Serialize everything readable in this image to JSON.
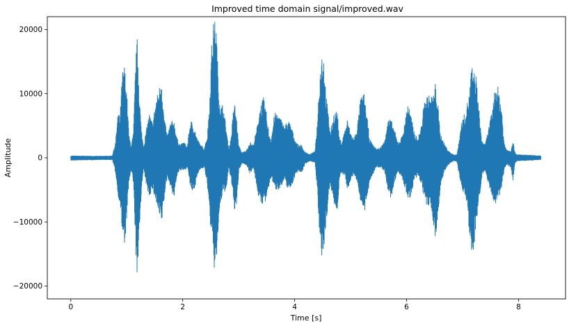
{
  "chart_data": {
    "type": "line",
    "title": "Improved time domain signal/improved.wav",
    "xlabel": "Time [s]",
    "ylabel": "Amplitude",
    "xlim": [
      -0.42,
      8.84
    ],
    "ylim": [
      -22000,
      22000
    ],
    "xticks": [
      0,
      2,
      4,
      6,
      8
    ],
    "yticks": [
      -20000,
      -10000,
      0,
      10000,
      20000
    ],
    "xtick_labels": [
      "0",
      "2",
      "4",
      "6",
      "8"
    ],
    "ytick_labels": [
      "−20000",
      "−10000",
      "0",
      "10000",
      "20000"
    ],
    "grid": false,
    "color": "#1f77b4",
    "series": [
      {
        "envelope": [
          [
            0.0,
            300,
            -400
          ],
          [
            0.5,
            250,
            -300
          ],
          [
            0.74,
            300,
            -300
          ],
          [
            0.8,
            2500,
            -2500
          ],
          [
            0.84,
            7000,
            -6000
          ],
          [
            0.88,
            6500,
            -7000
          ],
          [
            0.92,
            13500,
            -12500
          ],
          [
            0.96,
            14500,
            -14000
          ],
          [
            1.0,
            10500,
            -9000
          ],
          [
            1.04,
            3500,
            -3500
          ],
          [
            1.08,
            2000,
            -2000
          ],
          [
            1.12,
            4000,
            -4500
          ],
          [
            1.16,
            15500,
            -15000
          ],
          [
            1.19,
            19000,
            -20000
          ],
          [
            1.22,
            11000,
            -12000
          ],
          [
            1.26,
            4500,
            -5000
          ],
          [
            1.3,
            1800,
            -1800
          ],
          [
            1.36,
            5000,
            -5000
          ],
          [
            1.4,
            7000,
            -6000
          ],
          [
            1.46,
            5500,
            -5000
          ],
          [
            1.52,
            9000,
            -7000
          ],
          [
            1.58,
            11000,
            -9500
          ],
          [
            1.62,
            13000,
            -10500
          ],
          [
            1.66,
            7000,
            -7000
          ],
          [
            1.72,
            3500,
            -3000
          ],
          [
            1.78,
            5500,
            -4500
          ],
          [
            1.84,
            6000,
            -6500
          ],
          [
            1.9,
            3000,
            -2500
          ],
          [
            1.96,
            2000,
            -2000
          ],
          [
            2.02,
            2500,
            -2000
          ],
          [
            2.08,
            1800,
            -1500
          ],
          [
            2.14,
            6000,
            -5000
          ],
          [
            2.2,
            5000,
            -5500
          ],
          [
            2.26,
            3000,
            -2500
          ],
          [
            2.32,
            2000,
            -1800
          ],
          [
            2.38,
            1500,
            -1500
          ],
          [
            2.44,
            3500,
            -4500
          ],
          [
            2.48,
            9000,
            -9500
          ],
          [
            2.52,
            18500,
            -13000
          ],
          [
            2.56,
            22000,
            -17500
          ],
          [
            2.6,
            20500,
            -16500
          ],
          [
            2.64,
            11000,
            -10000
          ],
          [
            2.68,
            8000,
            -7000
          ],
          [
            2.72,
            8500,
            -5500
          ],
          [
            2.78,
            4500,
            -5000
          ],
          [
            2.82,
            1500,
            -1500
          ],
          [
            2.86,
            3000,
            -3500
          ],
          [
            2.92,
            9000,
            -8000
          ],
          [
            2.96,
            6500,
            -8000
          ],
          [
            3.0,
            2000,
            -2000
          ],
          [
            3.06,
            800,
            -800
          ],
          [
            3.14,
            1200,
            -1200
          ],
          [
            3.2,
            2500,
            -2500
          ],
          [
            3.26,
            2000,
            -1500
          ],
          [
            3.32,
            4500,
            -4500
          ],
          [
            3.38,
            8000,
            -7500
          ],
          [
            3.44,
            9500,
            -7000
          ],
          [
            3.48,
            8000,
            -7000
          ],
          [
            3.54,
            4000,
            -4500
          ],
          [
            3.58,
            3000,
            -3000
          ],
          [
            3.64,
            7000,
            -5000
          ],
          [
            3.7,
            7000,
            -5000
          ],
          [
            3.76,
            6000,
            -4500
          ],
          [
            3.82,
            5000,
            -3500
          ],
          [
            3.88,
            6000,
            -5000
          ],
          [
            3.94,
            5000,
            -4500
          ],
          [
            4.0,
            3000,
            -3000
          ],
          [
            4.06,
            2000,
            -2000
          ],
          [
            4.12,
            2000,
            -2500
          ],
          [
            4.18,
            1000,
            -1000
          ],
          [
            4.26,
            500,
            -500
          ],
          [
            4.36,
            1000,
            -700
          ],
          [
            4.4,
            5000,
            -5000
          ],
          [
            4.44,
            12000,
            -12500
          ],
          [
            4.48,
            16500,
            -15500
          ],
          [
            4.52,
            16000,
            -14500
          ],
          [
            4.56,
            10000,
            -10500
          ],
          [
            4.6,
            7000,
            -6500
          ],
          [
            4.64,
            4000,
            -4500
          ],
          [
            4.7,
            7000,
            -7500
          ],
          [
            4.76,
            7500,
            -8500
          ],
          [
            4.8,
            3000,
            -3000
          ],
          [
            4.84,
            2500,
            -2500
          ],
          [
            4.9,
            4500,
            -3000
          ],
          [
            4.94,
            6000,
            -5000
          ],
          [
            5.0,
            4000,
            -3500
          ],
          [
            5.06,
            3000,
            -2500
          ],
          [
            5.12,
            5000,
            -4000
          ],
          [
            5.18,
            9500,
            -7000
          ],
          [
            5.24,
            10000,
            -9000
          ],
          [
            5.3,
            6000,
            -6000
          ],
          [
            5.34,
            3000,
            -3500
          ],
          [
            5.4,
            2000,
            -2500
          ],
          [
            5.46,
            1500,
            -1500
          ],
          [
            5.52,
            1500,
            -1500
          ],
          [
            5.6,
            2500,
            -2000
          ],
          [
            5.66,
            6000,
            -5000
          ],
          [
            5.72,
            6000,
            -6500
          ],
          [
            5.78,
            4500,
            -4000
          ],
          [
            5.84,
            2500,
            -2000
          ],
          [
            5.9,
            3000,
            -3000
          ],
          [
            5.96,
            5000,
            -4500
          ],
          [
            6.02,
            9000,
            -6500
          ],
          [
            6.08,
            6500,
            -6000
          ],
          [
            6.14,
            4000,
            -3500
          ],
          [
            6.2,
            3000,
            -3000
          ],
          [
            6.26,
            5000,
            -4000
          ],
          [
            6.32,
            9000,
            -7000
          ],
          [
            6.38,
            10000,
            -8000
          ],
          [
            6.42,
            9500,
            -7000
          ],
          [
            6.48,
            10000,
            -10500
          ],
          [
            6.52,
            12000,
            -13500
          ],
          [
            6.56,
            8500,
            -8500
          ],
          [
            6.6,
            4000,
            -5000
          ],
          [
            6.66,
            2500,
            -2500
          ],
          [
            6.72,
            1500,
            -1500
          ],
          [
            6.78,
            800,
            -800
          ],
          [
            6.84,
            500,
            -500
          ],
          [
            6.9,
            500,
            -600
          ],
          [
            6.94,
            3000,
            -3000
          ],
          [
            6.98,
            5500,
            -5000
          ],
          [
            7.04,
            7000,
            -6000
          ],
          [
            7.08,
            8500,
            -7000
          ],
          [
            7.12,
            10000,
            -12500
          ],
          [
            7.16,
            14500,
            -15500
          ],
          [
            7.2,
            13500,
            -14000
          ],
          [
            7.24,
            13000,
            -10000
          ],
          [
            7.28,
            9000,
            -8000
          ],
          [
            7.34,
            3000,
            -3000
          ],
          [
            7.4,
            2000,
            -2000
          ],
          [
            7.46,
            4500,
            -4000
          ],
          [
            7.52,
            7000,
            -6000
          ],
          [
            7.58,
            11000,
            -7500
          ],
          [
            7.62,
            11500,
            -7000
          ],
          [
            7.66,
            10000,
            -6000
          ],
          [
            7.7,
            8000,
            -4500
          ],
          [
            7.74,
            2500,
            -2000
          ],
          [
            7.78,
            1500,
            -1000
          ],
          [
            7.86,
            1000,
            -1500
          ],
          [
            7.9,
            3000,
            -4000
          ],
          [
            7.93,
            1000,
            -1000
          ],
          [
            7.97,
            500,
            -500
          ],
          [
            8.2,
            400,
            -400
          ],
          [
            8.4,
            300,
            -300
          ]
        ]
      }
    ]
  }
}
